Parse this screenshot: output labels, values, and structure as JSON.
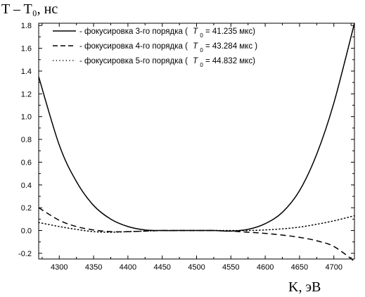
{
  "chart_data": {
    "type": "line",
    "ylabel": "T – T₀,  нс",
    "xlabel": "K,  эВ",
    "xlim": [
      4270,
      4730
    ],
    "ylim": [
      -0.25,
      1.82
    ],
    "x_ticks": [
      4300,
      4350,
      4400,
      4450,
      4500,
      4550,
      4600,
      4650,
      4700
    ],
    "y_ticks": [
      "-0.2",
      "0.0",
      "0.2",
      "0.4",
      "0.6",
      "0.8",
      "1.0",
      "1.2",
      "1.4",
      "1.6",
      "1.8"
    ],
    "grid": false,
    "legend_position": "top",
    "series": [
      {
        "name": "- фокусировка 3-го порядка ( T0 = 41.235 мкс)",
        "legend_text": "- фокусировка 3-го порядка (",
        "legend_T": "T",
        "legend_sub": "0",
        "legend_value": " = 41.235 мкс)",
        "style": "solid",
        "x": [
          4270,
          4300,
          4325,
          4350,
          4375,
          4400,
          4425,
          4450,
          4475,
          4500,
          4525,
          4550,
          4575,
          4600,
          4625,
          4650,
          4675,
          4700,
          4730
        ],
        "y": [
          1.35,
          0.75,
          0.43,
          0.22,
          0.1,
          0.035,
          0.005,
          0.0,
          0.0,
          0.0,
          0.0,
          -0.005,
          0.01,
          0.06,
          0.16,
          0.35,
          0.67,
          1.12,
          1.82
        ]
      },
      {
        "name": "- фокусировка 4-го порядка ( T0 = 43.284 мкс )",
        "legend_text": "- фокусировка 4-го порядка (",
        "legend_T": "T",
        "legend_sub": "0",
        "legend_value": " = 43.284 мкс )",
        "style": "dashed",
        "x": [
          4270,
          4300,
          4325,
          4350,
          4375,
          4400,
          4425,
          4450,
          4475,
          4500,
          4525,
          4550,
          4575,
          4600,
          4625,
          4650,
          4675,
          4700,
          4730
        ],
        "y": [
          0.2,
          0.09,
          0.035,
          0.005,
          -0.01,
          -0.01,
          -0.005,
          0.0,
          0.0,
          0.0,
          0.0,
          -0.005,
          -0.015,
          -0.025,
          -0.04,
          -0.06,
          -0.09,
          -0.14,
          -0.27
        ]
      },
      {
        "name": "- фокусировка 5-го порядка ( T0 = 44.832 мкс)",
        "legend_text": "- фокусировка 5-го порядка (",
        "legend_T": "T",
        "legend_sub": "0",
        "legend_value": " = 44.832 мкс)",
        "style": "dotted",
        "x": [
          4270,
          4300,
          4325,
          4350,
          4375,
          4400,
          4425,
          4450,
          4475,
          4500,
          4525,
          4550,
          4575,
          4600,
          4625,
          4650,
          4675,
          4700,
          4730
        ],
        "y": [
          0.07,
          0.035,
          0.01,
          -0.01,
          -0.015,
          -0.01,
          -0.005,
          0.0,
          0.0,
          0.0,
          0.0,
          0.0,
          0.0,
          0.005,
          0.015,
          0.03,
          0.055,
          0.085,
          0.13
        ]
      }
    ]
  }
}
